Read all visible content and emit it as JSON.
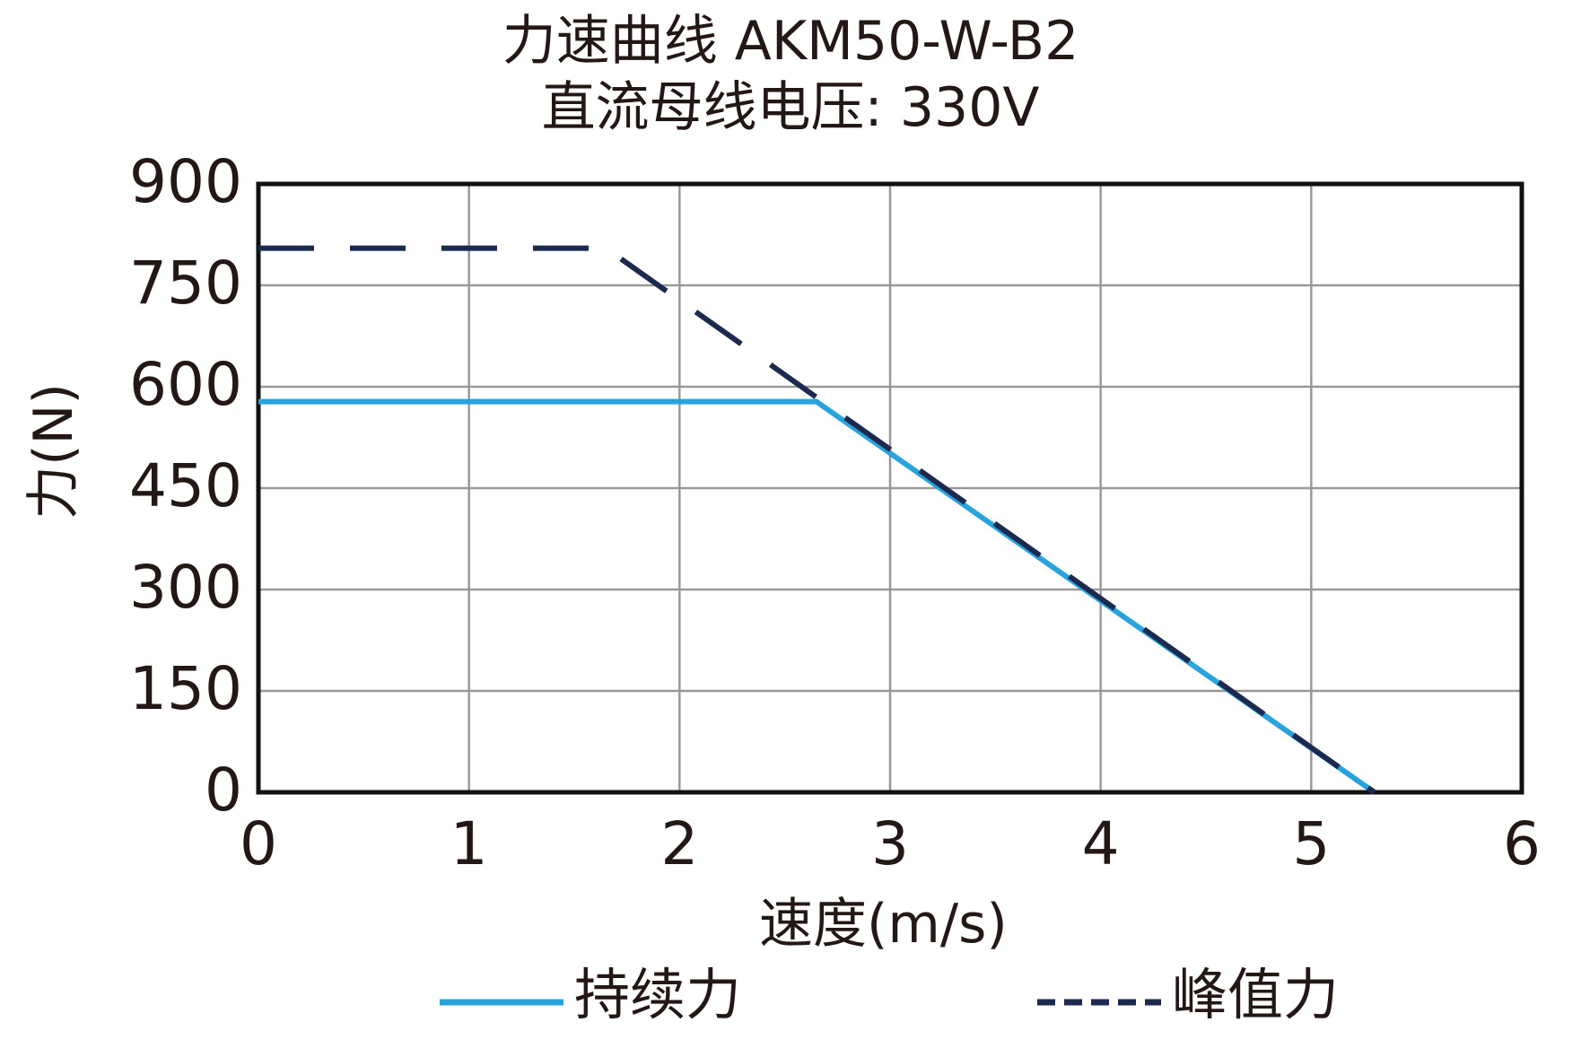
{
  "chart_data": {
    "type": "line",
    "title": "力速曲线 AKM50-W-B2",
    "subtitle": "直流母线电压: 330V",
    "xlabel": "速度(m/s)",
    "ylabel": "力(N)",
    "xlim": [
      0,
      6
    ],
    "ylim": [
      0,
      900
    ],
    "xticks": [
      "0",
      "1",
      "2",
      "3",
      "4",
      "5",
      "6"
    ],
    "yticks": [
      "0",
      "150",
      "300",
      "450",
      "600",
      "750",
      "900"
    ],
    "grid": true,
    "legend_position": "bottom",
    "series": [
      {
        "name": "持续力",
        "color": "#29a3dc",
        "style": "solid",
        "x": [
          0,
          2.65,
          5.3
        ],
        "y": [
          578,
          578,
          0
        ]
      },
      {
        "name": "峰值力",
        "color": "#1b2a4e",
        "style": "dashed",
        "x": [
          0,
          1.65,
          5.3
        ],
        "y": [
          805,
          805,
          0
        ]
      }
    ]
  }
}
